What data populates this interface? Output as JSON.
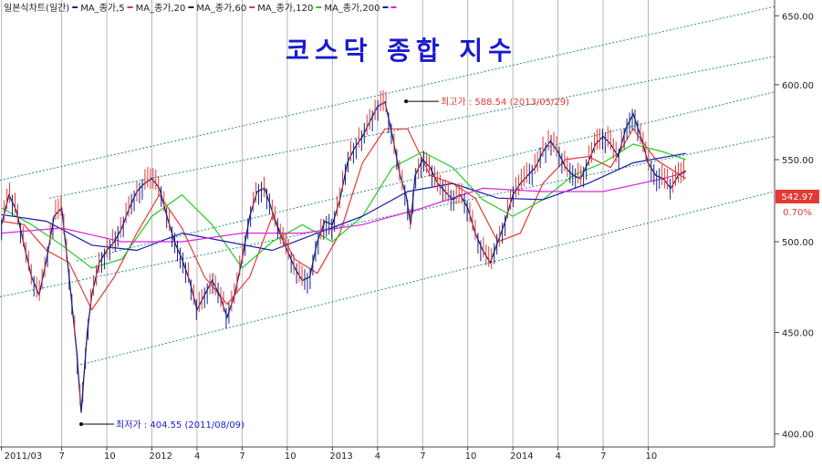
{
  "chart_data": {
    "type": "line",
    "title": "코스닥 종합 지수",
    "legend": [
      {
        "label": "일본식차트(일간)",
        "color": "#1a237e"
      },
      {
        "label": "MA_종가,5",
        "color": "#e53935"
      },
      {
        "label": "MA_종가,20",
        "color": "#222222"
      },
      {
        "label": "MA_종가,60",
        "color": "#e53935"
      },
      {
        "label": "MA_종가,120",
        "color": "#22cc22"
      },
      {
        "label": "MA_종가,200",
        "color": "#1a1aaa"
      },
      {
        "label": "",
        "color": "#dd22dd"
      }
    ],
    "x_ticks": [
      "2011/03",
      "7",
      "10",
      "2012",
      "4",
      "7",
      "10",
      "2013",
      "4",
      "7",
      "10",
      "2014",
      "4",
      "7",
      "10"
    ],
    "x_tick_months": [
      0,
      4,
      7,
      10,
      13,
      16,
      19,
      22,
      25,
      28,
      31,
      34,
      37,
      40,
      43
    ],
    "y_ticks": [
      400,
      450,
      500,
      550,
      600,
      650
    ],
    "y_tick_labels": [
      "400.00",
      "450.00",
      "500.00",
      "550.00",
      "600.00",
      "650.00"
    ],
    "ylim": [
      394,
      662
    ],
    "xlim_months": [
      -0.1,
      51.4
    ],
    "scale": "log",
    "grid": {
      "vertical": true,
      "horizontal": false
    },
    "current_value": "542.97",
    "current_change": "0.70%",
    "annotations": [
      {
        "text": "최고가 : 588.54 (2013/05/29)",
        "value": 588.54,
        "month": 26.9
      },
      {
        "text": "최저가 : 404.55 (2011/08/09)",
        "value": 404.55,
        "month": 5.3
      }
    ],
    "close_series": {
      "month": [
        0,
        0.5,
        1,
        1.5,
        2,
        2.5,
        3,
        3.5,
        4,
        4.5,
        5,
        5.3,
        5.7,
        6,
        6.5,
        7,
        7.5,
        8,
        8.5,
        9,
        9.5,
        10,
        10.5,
        11,
        11.5,
        12,
        12.5,
        13,
        13.5,
        14,
        14.5,
        15,
        15.5,
        16,
        16.5,
        17,
        17.5,
        18,
        18.5,
        19,
        19.5,
        20,
        20.5,
        21,
        21.5,
        22,
        22.5,
        23,
        23.5,
        24,
        24.5,
        25,
        25.5,
        26,
        26.5,
        26.9,
        27.2,
        27.5,
        28,
        28.5,
        29,
        29.5,
        30,
        30.5,
        31,
        31.5,
        32,
        32.5,
        33,
        33.5,
        34,
        34.5,
        35,
        35.5,
        36,
        36.5,
        37,
        37.5,
        38,
        38.5,
        39,
        39.5,
        40,
        40.5,
        41,
        41.5,
        42,
        42.5,
        43,
        43.5,
        44,
        44.5,
        45,
        45.5
      ],
      "values": [
        510,
        528,
        518,
        498,
        480,
        470,
        490,
        515,
        520,
        480,
        440,
        410,
        450,
        470,
        488,
        495,
        500,
        508,
        520,
        530,
        535,
        538,
        532,
        515,
        500,
        490,
        478,
        462,
        470,
        478,
        470,
        458,
        470,
        490,
        515,
        530,
        532,
        518,
        505,
        495,
        485,
        478,
        480,
        500,
        512,
        510,
        525,
        548,
        558,
        565,
        575,
        585,
        588,
        565,
        540,
        528,
        510,
        540,
        550,
        545,
        535,
        530,
        525,
        528,
        520,
        505,
        495,
        488,
        500,
        512,
        528,
        535,
        540,
        545,
        555,
        562,
        555,
        545,
        540,
        538,
        548,
        560,
        565,
        560,
        552,
        570,
        580,
        565,
        548,
        540,
        538,
        532,
        540,
        543
      ]
    },
    "ma_series": [
      {
        "color": "#e53935",
        "month": [
          0,
          1.5,
          3,
          4.5,
          6,
          7.5,
          9,
          10.5,
          12,
          13.5,
          15,
          16.5,
          18,
          19.5,
          21,
          22.5,
          24,
          25.5,
          27,
          28.5,
          30,
          31.5,
          33,
          34.5,
          36,
          37.5,
          39,
          40.5,
          42,
          43.5,
          45.5
        ],
        "values": [
          512,
          510,
          495,
          488,
          462,
          480,
          505,
          528,
          508,
          480,
          465,
          480,
          515,
          490,
          482,
          505,
          548,
          570,
          570,
          540,
          535,
          526,
          500,
          505,
          535,
          550,
          552,
          545,
          570,
          550,
          538
        ]
      },
      {
        "color": "#22cc22",
        "month": [
          0,
          2,
          4,
          6,
          8,
          10,
          12,
          14,
          16,
          18,
          20,
          22,
          24,
          26,
          28,
          30,
          32,
          34,
          36,
          38,
          40,
          42,
          44,
          45.5
        ],
        "values": [
          520,
          510,
          498,
          485,
          490,
          515,
          528,
          510,
          485,
          500,
          510,
          500,
          515,
          545,
          555,
          545,
          525,
          515,
          525,
          540,
          548,
          560,
          555,
          550
        ]
      },
      {
        "color": "#1a1aaa",
        "month": [
          0,
          3,
          6,
          9,
          12,
          15,
          18,
          21,
          24,
          27,
          30,
          33,
          36,
          39,
          42,
          45.5
        ],
        "values": [
          516,
          512,
          498,
          495,
          505,
          500,
          495,
          505,
          515,
          530,
          535,
          526,
          525,
          535,
          548,
          554
        ]
      },
      {
        "color": "#dd22dd",
        "month": [
          0,
          4,
          8,
          12,
          16,
          20,
          24,
          28,
          32,
          36,
          40,
          44,
          45.5
        ],
        "values": [
          505,
          508,
          500,
          500,
          505,
          505,
          510,
          520,
          532,
          530,
          530,
          538,
          542
        ]
      }
    ],
    "channels": [
      {
        "month": [
          5.0,
          51.4
        ],
        "values": [
          433,
          530
        ]
      },
      {
        "month": [
          -0.1,
          51.4
        ],
        "values": [
          469,
          565
        ]
      },
      {
        "month": [
          3.2,
          51.4
        ],
        "values": [
          526,
          620
        ]
      },
      {
        "month": [
          -0.1,
          51.4
        ],
        "values": [
          537,
          657
        ]
      },
      {
        "month": [
          5.0,
          51.4
        ],
        "values": [
          489,
          595
        ]
      }
    ]
  }
}
